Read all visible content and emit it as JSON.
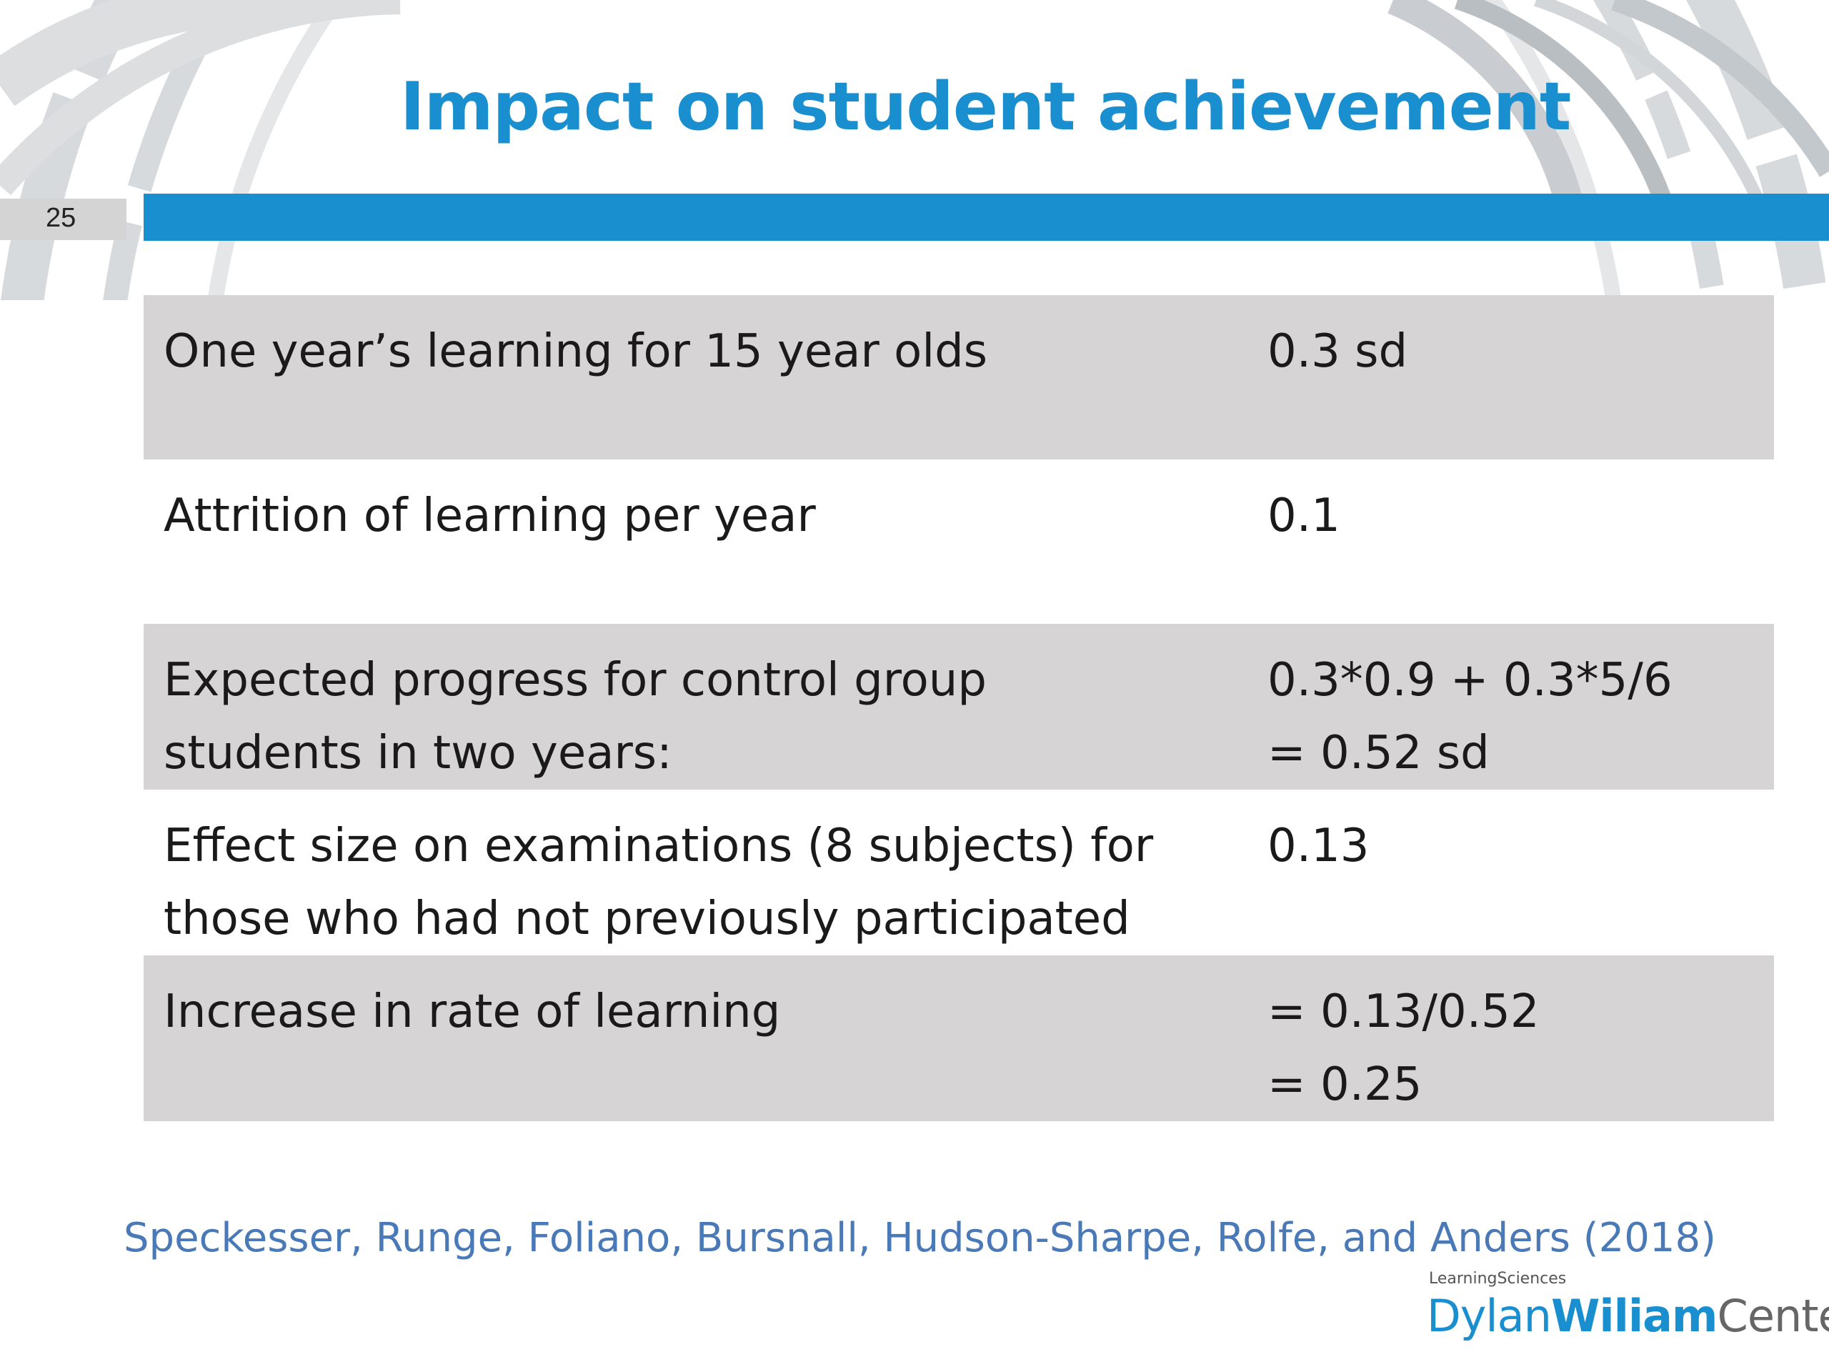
{
  "slide": {
    "title": "Impact on student achievement",
    "number": "25"
  },
  "rows": [
    {
      "label_lines": [
        "One year’s learning for 15 year olds"
      ],
      "value_lines": [
        "0.3 sd"
      ],
      "shaded": true
    },
    {
      "label_lines": [
        "Attrition of learning per year"
      ],
      "value_lines": [
        "0.1"
      ],
      "shaded": false
    },
    {
      "label_lines": [
        "Expected progress for control group",
        "students in two years:"
      ],
      "value_lines": [
        "0.3*0.9 + 0.3*5/6",
        "= 0.52 sd"
      ],
      "shaded": true
    },
    {
      "label_lines": [
        "Effect size on examinations (8 subjects) for",
        "those who had not previously participated"
      ],
      "value_lines": [
        "0.13"
      ],
      "shaded": false
    },
    {
      "label_lines": [
        "Increase in rate of learning"
      ],
      "value_lines": [
        "= 0.13/0.52",
        "= 0.25"
      ],
      "shaded": true
    }
  ],
  "citation": "Speckesser, Runge, Foliano, Bursnall, Hudson-Sharpe, Rolfe, and Anders (2018)",
  "logo": {
    "top_text": "LearningSciences",
    "part1": "Dylan",
    "part2": "Wiliam",
    "part3": "Center"
  },
  "colors": {
    "accent_blue": "#1a8fd0",
    "row_shade": "#d6d4d4",
    "citation": "#4a79b8"
  }
}
